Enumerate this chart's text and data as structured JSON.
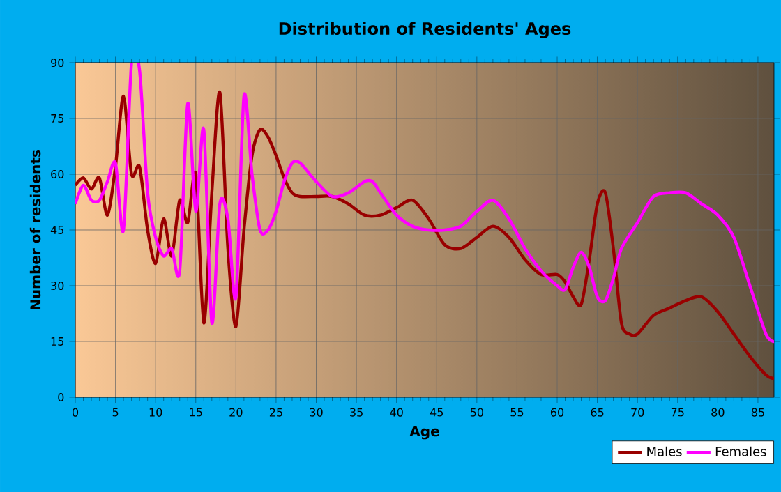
{
  "chart_data": {
    "type": "line",
    "title": "Distribution of Residents' Ages",
    "xlabel": "Age",
    "ylabel": "Number of residents",
    "xlim": [
      0,
      87
    ],
    "ylim": [
      0,
      90
    ],
    "xticks": [
      0,
      5,
      10,
      15,
      20,
      25,
      30,
      35,
      40,
      45,
      50,
      55,
      60,
      65,
      70,
      75,
      80,
      85
    ],
    "yticks": [
      0,
      15,
      30,
      45,
      60,
      75,
      90
    ],
    "grid": true,
    "legend": "bottom right",
    "marker": "none",
    "line_style": "solid",
    "series": [
      {
        "name": "Males",
        "color": "#990000",
        "x": [
          0,
          1,
          2,
          3,
          4,
          5,
          6,
          7,
          8,
          9,
          10,
          11,
          12,
          13,
          14,
          15,
          16,
          17,
          18,
          19,
          20,
          21,
          22,
          23,
          24,
          25,
          26,
          27,
          28,
          30,
          32,
          34,
          36,
          38,
          40,
          42,
          44,
          46,
          48,
          50,
          52,
          54,
          56,
          58,
          60,
          61,
          62,
          63,
          64,
          65,
          66,
          67,
          68,
          69,
          70,
          72,
          74,
          76,
          78,
          80,
          82,
          84,
          86,
          87
        ],
        "values": [
          57,
          59,
          56,
          59,
          49,
          62,
          81,
          60,
          62,
          45,
          36,
          48,
          38,
          53,
          47,
          60,
          20,
          55,
          82,
          40,
          19,
          45,
          65,
          72,
          70,
          65,
          59,
          55,
          54,
          54,
          54,
          52,
          49,
          49,
          51,
          53,
          48,
          41,
          40,
          43,
          46,
          43,
          37,
          33,
          33,
          31,
          27,
          25,
          37,
          52,
          55,
          40,
          20,
          17,
          17,
          22,
          24,
          26,
          27,
          23,
          17,
          11,
          6,
          5
        ]
      },
      {
        "name": "Females",
        "color": "#ff00ff",
        "x": [
          0,
          1,
          2,
          3,
          4,
          5,
          6,
          7,
          8,
          9,
          10,
          11,
          12,
          13,
          14,
          15,
          16,
          17,
          18,
          19,
          20,
          21,
          22,
          23,
          24,
          25,
          26,
          27,
          28,
          30,
          32,
          34,
          36,
          37,
          38,
          40,
          42,
          44,
          46,
          48,
          50,
          52,
          54,
          56,
          58,
          60,
          61,
          62,
          63,
          64,
          65,
          66,
          67,
          68,
          70,
          72,
          74,
          76,
          78,
          80,
          82,
          84,
          86,
          87
        ],
        "values": [
          52,
          57,
          53,
          53,
          58,
          63,
          45,
          90,
          88,
          55,
          43,
          38,
          40,
          34,
          79,
          50,
          72,
          20,
          52,
          48,
          27,
          81,
          60,
          45,
          45,
          50,
          58,
          63,
          63,
          58,
          54,
          55,
          58,
          58,
          55,
          49,
          46,
          45,
          45,
          46,
          50,
          53,
          48,
          40,
          34,
          30,
          29,
          35,
          39,
          35,
          27,
          26,
          32,
          40,
          47,
          54,
          55,
          55,
          52,
          49,
          43,
          30,
          17,
          15
        ]
      }
    ]
  }
}
